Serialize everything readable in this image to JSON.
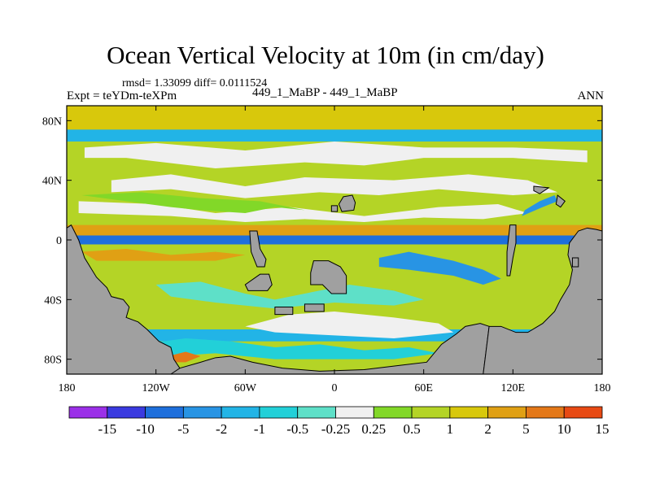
{
  "chart_data": {
    "type": "heatmap",
    "title": "Ocean Vertical Velocity at 10m (in cm/day)",
    "stats_text": "rmsd= 1.33099 diff= 0.0111524",
    "expt_label": "Expt = teYDm-teXPm",
    "diff_label": "449_1_MaBP - 449_1_MaBP",
    "season": "ANN",
    "xlim": [
      -180,
      180
    ],
    "ylim": [
      -90,
      90
    ],
    "x_ticks": [
      {
        "value": -180,
        "label": "180"
      },
      {
        "value": -120,
        "label": "120W"
      },
      {
        "value": -60,
        "label": "60W"
      },
      {
        "value": 0,
        "label": "0"
      },
      {
        "value": 60,
        "label": "60E"
      },
      {
        "value": 120,
        "label": "120E"
      },
      {
        "value": 180,
        "label": "180"
      }
    ],
    "y_ticks": [
      {
        "value": 80,
        "label": "80N"
      },
      {
        "value": 40,
        "label": "40N"
      },
      {
        "value": 0,
        "label": "0"
      },
      {
        "value": -40,
        "label": "40S"
      },
      {
        "value": -80,
        "label": "80S"
      }
    ],
    "colorbar": {
      "levels": [
        "-15",
        "-10",
        "-5",
        "-2",
        "-1",
        "-0.5",
        "-0.25",
        "0.25",
        "0.5",
        "1",
        "2",
        "5",
        "10",
        "15"
      ],
      "colors": [
        "#9b30e8",
        "#3a3ae0",
        "#1e6fdc",
        "#2894e4",
        "#22b4e6",
        "#22d0d8",
        "#5ee0c8",
        "#f0f0f0",
        "#82d828",
        "#b4d426",
        "#d8c80c",
        "#e0a014",
        "#e47818",
        "#e84a14"
      ]
    },
    "land_color": "#a0a0a0",
    "bands": [
      {
        "lat": [
          73,
          90
        ],
        "color": "#d8c80c",
        "note": "Arctic band"
      },
      {
        "lat": [
          66,
          74
        ],
        "color": "#22b4e6"
      },
      {
        "lat": [
          -3,
          3
        ],
        "color": "#1e6fdc",
        "note": "equatorial band"
      },
      {
        "lat": [
          3,
          10
        ],
        "color": "#e0a014"
      },
      {
        "lat": [
          -60,
          -50
        ],
        "color": "#b4d426"
      },
      {
        "lat": [
          -68,
          -60
        ],
        "color": "#22b4e6"
      }
    ],
    "land_masses": [
      {
        "name": "western-continent",
        "points": [
          [
            -180,
            8
          ],
          [
            -177,
            10
          ],
          [
            -172,
            0
          ],
          [
            -168,
            -12
          ],
          [
            -160,
            -25
          ],
          [
            -153,
            -32
          ],
          [
            -150,
            -38
          ],
          [
            -142,
            -40
          ],
          [
            -138,
            -45
          ],
          [
            -140,
            -52
          ],
          [
            -132,
            -55
          ],
          [
            -126,
            -60
          ],
          [
            -118,
            -68
          ],
          [
            -110,
            -72
          ],
          [
            -108,
            -80
          ],
          [
            -104,
            -86
          ],
          [
            -104,
            -90
          ],
          [
            -180,
            -90
          ]
        ]
      },
      {
        "name": "southern-basin-floor",
        "points": [
          [
            -110,
            -90
          ],
          [
            -104,
            -86
          ],
          [
            -90,
            -82
          ],
          [
            -80,
            -79
          ],
          [
            -70,
            -78
          ],
          [
            -55,
            -82
          ],
          [
            -35,
            -86
          ],
          [
            -10,
            -88
          ],
          [
            20,
            -87
          ],
          [
            45,
            -84
          ],
          [
            62,
            -82
          ],
          [
            72,
            -70
          ],
          [
            82,
            -63
          ],
          [
            88,
            -58
          ],
          [
            98,
            -56
          ],
          [
            104,
            -58
          ],
          [
            100,
            -90
          ]
        ]
      },
      {
        "name": "eastern-continent",
        "points": [
          [
            100,
            -90
          ],
          [
            104,
            -58
          ],
          [
            112,
            -58
          ],
          [
            122,
            -62
          ],
          [
            130,
            -62
          ],
          [
            140,
            -56
          ],
          [
            148,
            -48
          ],
          [
            152,
            -40
          ],
          [
            158,
            -30
          ],
          [
            160,
            -20
          ],
          [
            157,
            -10
          ],
          [
            158,
            -2
          ],
          [
            164,
            6
          ],
          [
            170,
            8
          ],
          [
            176,
            7
          ],
          [
            180,
            6
          ],
          [
            180,
            -90
          ]
        ]
      },
      {
        "name": "island-a",
        "points": [
          [
            -57,
            6
          ],
          [
            -52,
            6
          ],
          [
            -50,
            -6
          ],
          [
            -46,
            -13
          ],
          [
            -47,
            -18
          ],
          [
            -52,
            -18
          ],
          [
            -56,
            -8
          ]
        ]
      },
      {
        "name": "island-b",
        "points": [
          [
            -50,
            -23
          ],
          [
            -44,
            -23
          ],
          [
            -42,
            -30
          ],
          [
            -45,
            -34
          ],
          [
            -52,
            -34
          ],
          [
            -58,
            -34
          ],
          [
            -60,
            -30
          ]
        ]
      },
      {
        "name": "island-c",
        "points": [
          [
            -14,
            -14
          ],
          [
            -4,
            -14
          ],
          [
            4,
            -18
          ],
          [
            8,
            -24
          ],
          [
            8,
            -36
          ],
          [
            -2,
            -36
          ],
          [
            -8,
            -30
          ],
          [
            -16,
            -30
          ],
          [
            -16,
            -22
          ]
        ]
      },
      {
        "name": "island-d",
        "points": [
          [
            6,
            29
          ],
          [
            12,
            30
          ],
          [
            14,
            25
          ],
          [
            13,
            20
          ],
          [
            5,
            19
          ],
          [
            3,
            24
          ]
        ]
      },
      {
        "name": "island-e",
        "points": [
          [
            -2,
            23
          ],
          [
            2,
            23
          ],
          [
            2,
            19
          ],
          [
            -2,
            19
          ]
        ]
      },
      {
        "name": "island-f",
        "points": [
          [
            -40,
            -45
          ],
          [
            -28,
            -45
          ],
          [
            -28,
            -50
          ],
          [
            -40,
            -50
          ]
        ]
      },
      {
        "name": "island-g",
        "points": [
          [
            -20,
            -43
          ],
          [
            -7,
            -43
          ],
          [
            -7,
            -48
          ],
          [
            -20,
            -48
          ]
        ]
      },
      {
        "name": "island-h",
        "points": [
          [
            118,
            10
          ],
          [
            122,
            10
          ],
          [
            122,
            -2
          ],
          [
            120,
            -12
          ],
          [
            118,
            -24
          ],
          [
            116,
            -24
          ],
          [
            116,
            -8
          ]
        ]
      },
      {
        "name": "island-i",
        "points": [
          [
            134,
            36
          ],
          [
            144,
            35
          ],
          [
            138,
            31
          ],
          [
            134,
            33
          ]
        ]
      },
      {
        "name": "island-j",
        "points": [
          [
            150,
            30
          ],
          [
            155,
            26
          ],
          [
            152,
            22
          ],
          [
            149,
            24
          ]
        ]
      },
      {
        "name": "island-k",
        "points": [
          [
            160,
            -12
          ],
          [
            164,
            -12
          ],
          [
            164,
            -18
          ],
          [
            160,
            -18
          ]
        ]
      }
    ],
    "sea_features": [
      {
        "color": "#f0f0f0",
        "points": [
          [
            -168,
            62
          ],
          [
            -120,
            65
          ],
          [
            -60,
            60
          ],
          [
            0,
            66
          ],
          [
            60,
            62
          ],
          [
            120,
            62
          ],
          [
            170,
            60
          ],
          [
            170,
            52
          ],
          [
            120,
            55
          ],
          [
            60,
            55
          ],
          [
            20,
            50
          ],
          [
            -20,
            52
          ],
          [
            -80,
            48
          ],
          [
            -140,
            55
          ],
          [
            -168,
            55
          ]
        ]
      },
      {
        "color": "#f0f0f0",
        "points": [
          [
            -150,
            40
          ],
          [
            -110,
            44
          ],
          [
            -60,
            36
          ],
          [
            -20,
            42
          ],
          [
            40,
            40
          ],
          [
            90,
            44
          ],
          [
            130,
            40
          ],
          [
            150,
            32
          ],
          [
            120,
            30
          ],
          [
            70,
            34
          ],
          [
            30,
            30
          ],
          [
            -10,
            32
          ],
          [
            -60,
            28
          ],
          [
            -110,
            34
          ],
          [
            -150,
            32
          ]
        ]
      },
      {
        "color": "#f0f0f0",
        "points": [
          [
            -172,
            26
          ],
          [
            -120,
            24
          ],
          [
            -80,
            18
          ],
          [
            -30,
            22
          ],
          [
            20,
            16
          ],
          [
            70,
            22
          ],
          [
            110,
            24
          ],
          [
            130,
            18
          ],
          [
            100,
            14
          ],
          [
            60,
            15
          ],
          [
            20,
            12
          ],
          [
            -20,
            14
          ],
          [
            -60,
            12
          ],
          [
            -110,
            16
          ],
          [
            -172,
            18
          ]
        ]
      },
      {
        "color": "#f0f0f0",
        "points": [
          [
            -30,
            -50
          ],
          [
            0,
            -48
          ],
          [
            40,
            -52
          ],
          [
            70,
            -56
          ],
          [
            80,
            -62
          ],
          [
            40,
            -66
          ],
          [
            0,
            -64
          ],
          [
            -40,
            -62
          ],
          [
            -60,
            -58
          ]
        ]
      },
      {
        "color": "#22d0d8",
        "points": [
          [
            -130,
            -70
          ],
          [
            -100,
            -66
          ],
          [
            -70,
            -68
          ],
          [
            -40,
            -72
          ],
          [
            -10,
            -70
          ],
          [
            20,
            -74
          ],
          [
            50,
            -72
          ],
          [
            70,
            -76
          ],
          [
            40,
            -80
          ],
          [
            0,
            -80
          ],
          [
            -40,
            -80
          ],
          [
            -80,
            -76
          ],
          [
            -110,
            -78
          ]
        ]
      },
      {
        "color": "#5ee0c8",
        "points": [
          [
            -120,
            -30
          ],
          [
            -90,
            -28
          ],
          [
            -60,
            -36
          ],
          [
            -40,
            -40
          ],
          [
            -20,
            -36
          ],
          [
            10,
            -30
          ],
          [
            40,
            -34
          ],
          [
            60,
            -40
          ],
          [
            40,
            -44
          ],
          [
            0,
            -42
          ],
          [
            -40,
            -46
          ],
          [
            -80,
            -42
          ],
          [
            -110,
            -38
          ]
        ]
      },
      {
        "color": "#82d828",
        "points": [
          [
            -170,
            30
          ],
          [
            -140,
            26
          ],
          [
            -110,
            22
          ],
          [
            -90,
            20
          ],
          [
            -60,
            18
          ],
          [
            -40,
            22
          ],
          [
            -20,
            20
          ],
          [
            -50,
            26
          ],
          [
            -90,
            28
          ],
          [
            -130,
            32
          ]
        ]
      },
      {
        "color": "#2894e4",
        "points": [
          [
            30,
            -12
          ],
          [
            50,
            -8
          ],
          [
            80,
            -14
          ],
          [
            100,
            -20
          ],
          [
            112,
            -26
          ],
          [
            100,
            -30
          ],
          [
            80,
            -24
          ],
          [
            50,
            -20
          ],
          [
            30,
            -18
          ]
        ]
      },
      {
        "color": "#e0a014",
        "points": [
          [
            -170,
            -8
          ],
          [
            -140,
            -6
          ],
          [
            -110,
            -10
          ],
          [
            -80,
            -8
          ],
          [
            -60,
            -10
          ],
          [
            -80,
            -14
          ],
          [
            -120,
            -14
          ],
          [
            -160,
            -14
          ]
        ]
      },
      {
        "color": "#2894e4",
        "points": [
          [
            126,
            16
          ],
          [
            140,
            22
          ],
          [
            150,
            26
          ],
          [
            148,
            30
          ],
          [
            138,
            26
          ],
          [
            128,
            20
          ]
        ]
      },
      {
        "color": "#e47818",
        "points": [
          [
            -112,
            -78
          ],
          [
            -100,
            -75
          ],
          [
            -90,
            -78
          ],
          [
            -100,
            -82
          ],
          [
            -110,
            -82
          ]
        ]
      }
    ]
  }
}
